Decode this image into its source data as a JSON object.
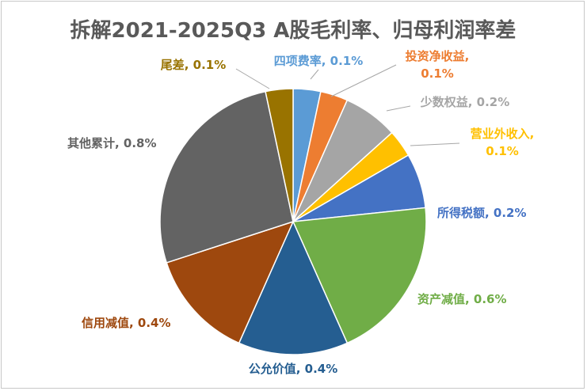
{
  "chart_data": {
    "type": "pie",
    "title": "拆解2021-2025Q3 A股毛利率、归母利润率差",
    "slices": [
      {
        "name": "四项费率",
        "value_label": "0.1%",
        "value": 0.1,
        "color": "#5b9bd5"
      },
      {
        "name": "投资净收益",
        "value_label": "0.1%",
        "value": 0.1,
        "color": "#ed7d31"
      },
      {
        "name": "少数权益",
        "value_label": "0.2%",
        "value": 0.2,
        "color": "#a5a5a5"
      },
      {
        "name": "营业外收入",
        "value_label": "0.1%",
        "value": 0.1,
        "color": "#ffc000"
      },
      {
        "name": "所得税额",
        "value_label": "0.2%",
        "value": 0.2,
        "color": "#4472c4"
      },
      {
        "name": "资产减值",
        "value_label": "0.6%",
        "value": 0.6,
        "color": "#70ad47"
      },
      {
        "name": "公允价值",
        "value_label": "0.4%",
        "value": 0.4,
        "color": "#255e91"
      },
      {
        "name": "信用减值",
        "value_label": "0.4%",
        "value": 0.4,
        "color": "#9e480e"
      },
      {
        "name": "其他累计",
        "value_label": "0.8%",
        "value": 0.8,
        "color": "#636363"
      },
      {
        "name": "尾差",
        "value_label": "0.1%",
        "value": 0.1,
        "color": "#997300"
      }
    ]
  }
}
